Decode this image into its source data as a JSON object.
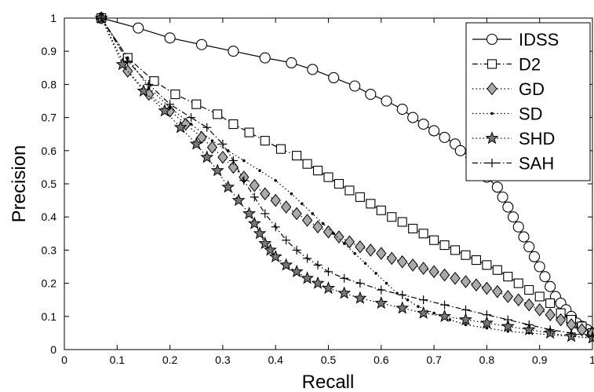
{
  "chart_data": {
    "type": "line",
    "xlabel": "Recall",
    "ylabel": "Precision",
    "xlim": [
      0,
      1
    ],
    "ylim": [
      0,
      1
    ],
    "xticks": [
      "0",
      "0.1",
      "0.2",
      "0.3",
      "0.4",
      "0.5",
      "0.6",
      "0.7",
      "0.8",
      "0.9",
      "1"
    ],
    "yticks": [
      "0",
      "0.1",
      "0.2",
      "0.3",
      "0.4",
      "0.5",
      "0.6",
      "0.7",
      "0.8",
      "0.9",
      "1"
    ],
    "grid": false,
    "legend_position": "top-right",
    "series": [
      {
        "name": "IDSS",
        "marker": "circle",
        "line": "solid",
        "color": "#000000",
        "x": [
          0.07,
          0.14,
          0.2,
          0.26,
          0.32,
          0.38,
          0.43,
          0.47,
          0.51,
          0.55,
          0.58,
          0.61,
          0.64,
          0.66,
          0.68,
          0.7,
          0.72,
          0.74,
          0.75,
          0.77,
          0.78,
          0.79,
          0.8,
          0.82,
          0.83,
          0.84,
          0.85,
          0.86,
          0.87,
          0.88,
          0.89,
          0.9,
          0.91,
          0.92,
          0.93,
          0.94,
          0.95,
          0.96,
          0.97,
          0.98,
          0.99,
          1.0
        ],
        "y": [
          1.0,
          0.97,
          0.94,
          0.92,
          0.9,
          0.88,
          0.865,
          0.845,
          0.82,
          0.795,
          0.77,
          0.75,
          0.725,
          0.7,
          0.68,
          0.66,
          0.64,
          0.62,
          0.6,
          0.58,
          0.56,
          0.54,
          0.52,
          0.49,
          0.46,
          0.43,
          0.4,
          0.37,
          0.34,
          0.31,
          0.28,
          0.25,
          0.22,
          0.19,
          0.16,
          0.14,
          0.12,
          0.1,
          0.08,
          0.07,
          0.06,
          0.05
        ]
      },
      {
        "name": "D2",
        "marker": "square",
        "line": "dashdot",
        "color": "#000000",
        "x": [
          0.07,
          0.12,
          0.17,
          0.21,
          0.25,
          0.29,
          0.32,
          0.35,
          0.38,
          0.41,
          0.44,
          0.46,
          0.48,
          0.5,
          0.52,
          0.54,
          0.56,
          0.58,
          0.6,
          0.62,
          0.64,
          0.66,
          0.68,
          0.7,
          0.72,
          0.74,
          0.76,
          0.78,
          0.8,
          0.82,
          0.84,
          0.86,
          0.88,
          0.9,
          0.92,
          0.94,
          0.96,
          0.98,
          1.0
        ],
        "y": [
          1.0,
          0.88,
          0.81,
          0.77,
          0.74,
          0.71,
          0.68,
          0.655,
          0.63,
          0.605,
          0.585,
          0.56,
          0.54,
          0.52,
          0.5,
          0.48,
          0.46,
          0.44,
          0.42,
          0.4,
          0.385,
          0.365,
          0.35,
          0.33,
          0.315,
          0.3,
          0.285,
          0.27,
          0.255,
          0.24,
          0.22,
          0.2,
          0.18,
          0.16,
          0.14,
          0.11,
          0.09,
          0.07,
          0.05
        ]
      },
      {
        "name": "GD",
        "marker": "diamond",
        "line": "dotted",
        "color": "#000000",
        "x": [
          0.07,
          0.12,
          0.16,
          0.2,
          0.23,
          0.26,
          0.28,
          0.3,
          0.32,
          0.34,
          0.36,
          0.38,
          0.4,
          0.42,
          0.44,
          0.46,
          0.48,
          0.5,
          0.52,
          0.54,
          0.56,
          0.58,
          0.6,
          0.62,
          0.64,
          0.66,
          0.68,
          0.7,
          0.72,
          0.74,
          0.76,
          0.78,
          0.8,
          0.82,
          0.84,
          0.86,
          0.88,
          0.9,
          0.92,
          0.94,
          0.96,
          0.98,
          1.0
        ],
        "y": [
          1.0,
          0.84,
          0.77,
          0.72,
          0.68,
          0.64,
          0.61,
          0.58,
          0.55,
          0.52,
          0.495,
          0.47,
          0.45,
          0.43,
          0.41,
          0.39,
          0.37,
          0.355,
          0.34,
          0.325,
          0.31,
          0.3,
          0.29,
          0.275,
          0.265,
          0.255,
          0.245,
          0.235,
          0.225,
          0.215,
          0.205,
          0.195,
          0.185,
          0.175,
          0.16,
          0.15,
          0.135,
          0.12,
          0.105,
          0.09,
          0.075,
          0.06,
          0.05
        ]
      },
      {
        "name": "SD",
        "marker": "dot",
        "line": "dotted",
        "color": "#000000",
        "x": [
          0.07,
          0.12,
          0.16,
          0.2,
          0.24,
          0.28,
          0.31,
          0.34,
          0.37,
          0.4,
          0.43,
          0.45,
          0.47,
          0.49,
          0.51,
          0.53,
          0.55,
          0.57,
          0.59,
          0.61,
          0.63,
          0.65,
          0.67,
          0.7,
          0.73,
          0.76,
          0.8,
          0.84,
          0.88,
          0.92,
          0.96,
          1.0
        ],
        "y": [
          1.0,
          0.88,
          0.79,
          0.73,
          0.68,
          0.63,
          0.6,
          0.57,
          0.54,
          0.51,
          0.47,
          0.44,
          0.41,
          0.38,
          0.35,
          0.32,
          0.29,
          0.26,
          0.23,
          0.2,
          0.17,
          0.15,
          0.13,
          0.11,
          0.09,
          0.075,
          0.065,
          0.055,
          0.05,
          0.045,
          0.04,
          0.035
        ]
      },
      {
        "name": "SHD",
        "marker": "star",
        "line": "dotted",
        "color": "#000000",
        "x": [
          0.07,
          0.11,
          0.15,
          0.19,
          0.22,
          0.25,
          0.27,
          0.29,
          0.31,
          0.33,
          0.35,
          0.36,
          0.37,
          0.38,
          0.39,
          0.4,
          0.42,
          0.44,
          0.46,
          0.48,
          0.5,
          0.53,
          0.56,
          0.6,
          0.64,
          0.68,
          0.72,
          0.76,
          0.8,
          0.84,
          0.88,
          0.92,
          0.96,
          1.0
        ],
        "y": [
          1.0,
          0.86,
          0.78,
          0.72,
          0.67,
          0.62,
          0.58,
          0.54,
          0.49,
          0.45,
          0.41,
          0.38,
          0.35,
          0.32,
          0.3,
          0.28,
          0.255,
          0.235,
          0.215,
          0.2,
          0.185,
          0.17,
          0.155,
          0.14,
          0.125,
          0.11,
          0.1,
          0.09,
          0.08,
          0.07,
          0.06,
          0.05,
          0.04,
          0.035
        ]
      },
      {
        "name": "SAH",
        "marker": "plus",
        "line": "dashdot",
        "color": "#000000",
        "x": [
          0.07,
          0.12,
          0.16,
          0.2,
          0.24,
          0.27,
          0.3,
          0.32,
          0.34,
          0.36,
          0.38,
          0.4,
          0.42,
          0.44,
          0.46,
          0.48,
          0.5,
          0.53,
          0.56,
          0.6,
          0.64,
          0.68,
          0.72,
          0.76,
          0.8,
          0.84,
          0.88,
          0.92,
          0.96,
          1.0
        ],
        "y": [
          1.0,
          0.87,
          0.8,
          0.74,
          0.7,
          0.67,
          0.62,
          0.57,
          0.51,
          0.46,
          0.41,
          0.37,
          0.33,
          0.3,
          0.275,
          0.255,
          0.235,
          0.215,
          0.2,
          0.18,
          0.165,
          0.15,
          0.135,
          0.12,
          0.105,
          0.09,
          0.075,
          0.06,
          0.05,
          0.04
        ]
      }
    ]
  }
}
